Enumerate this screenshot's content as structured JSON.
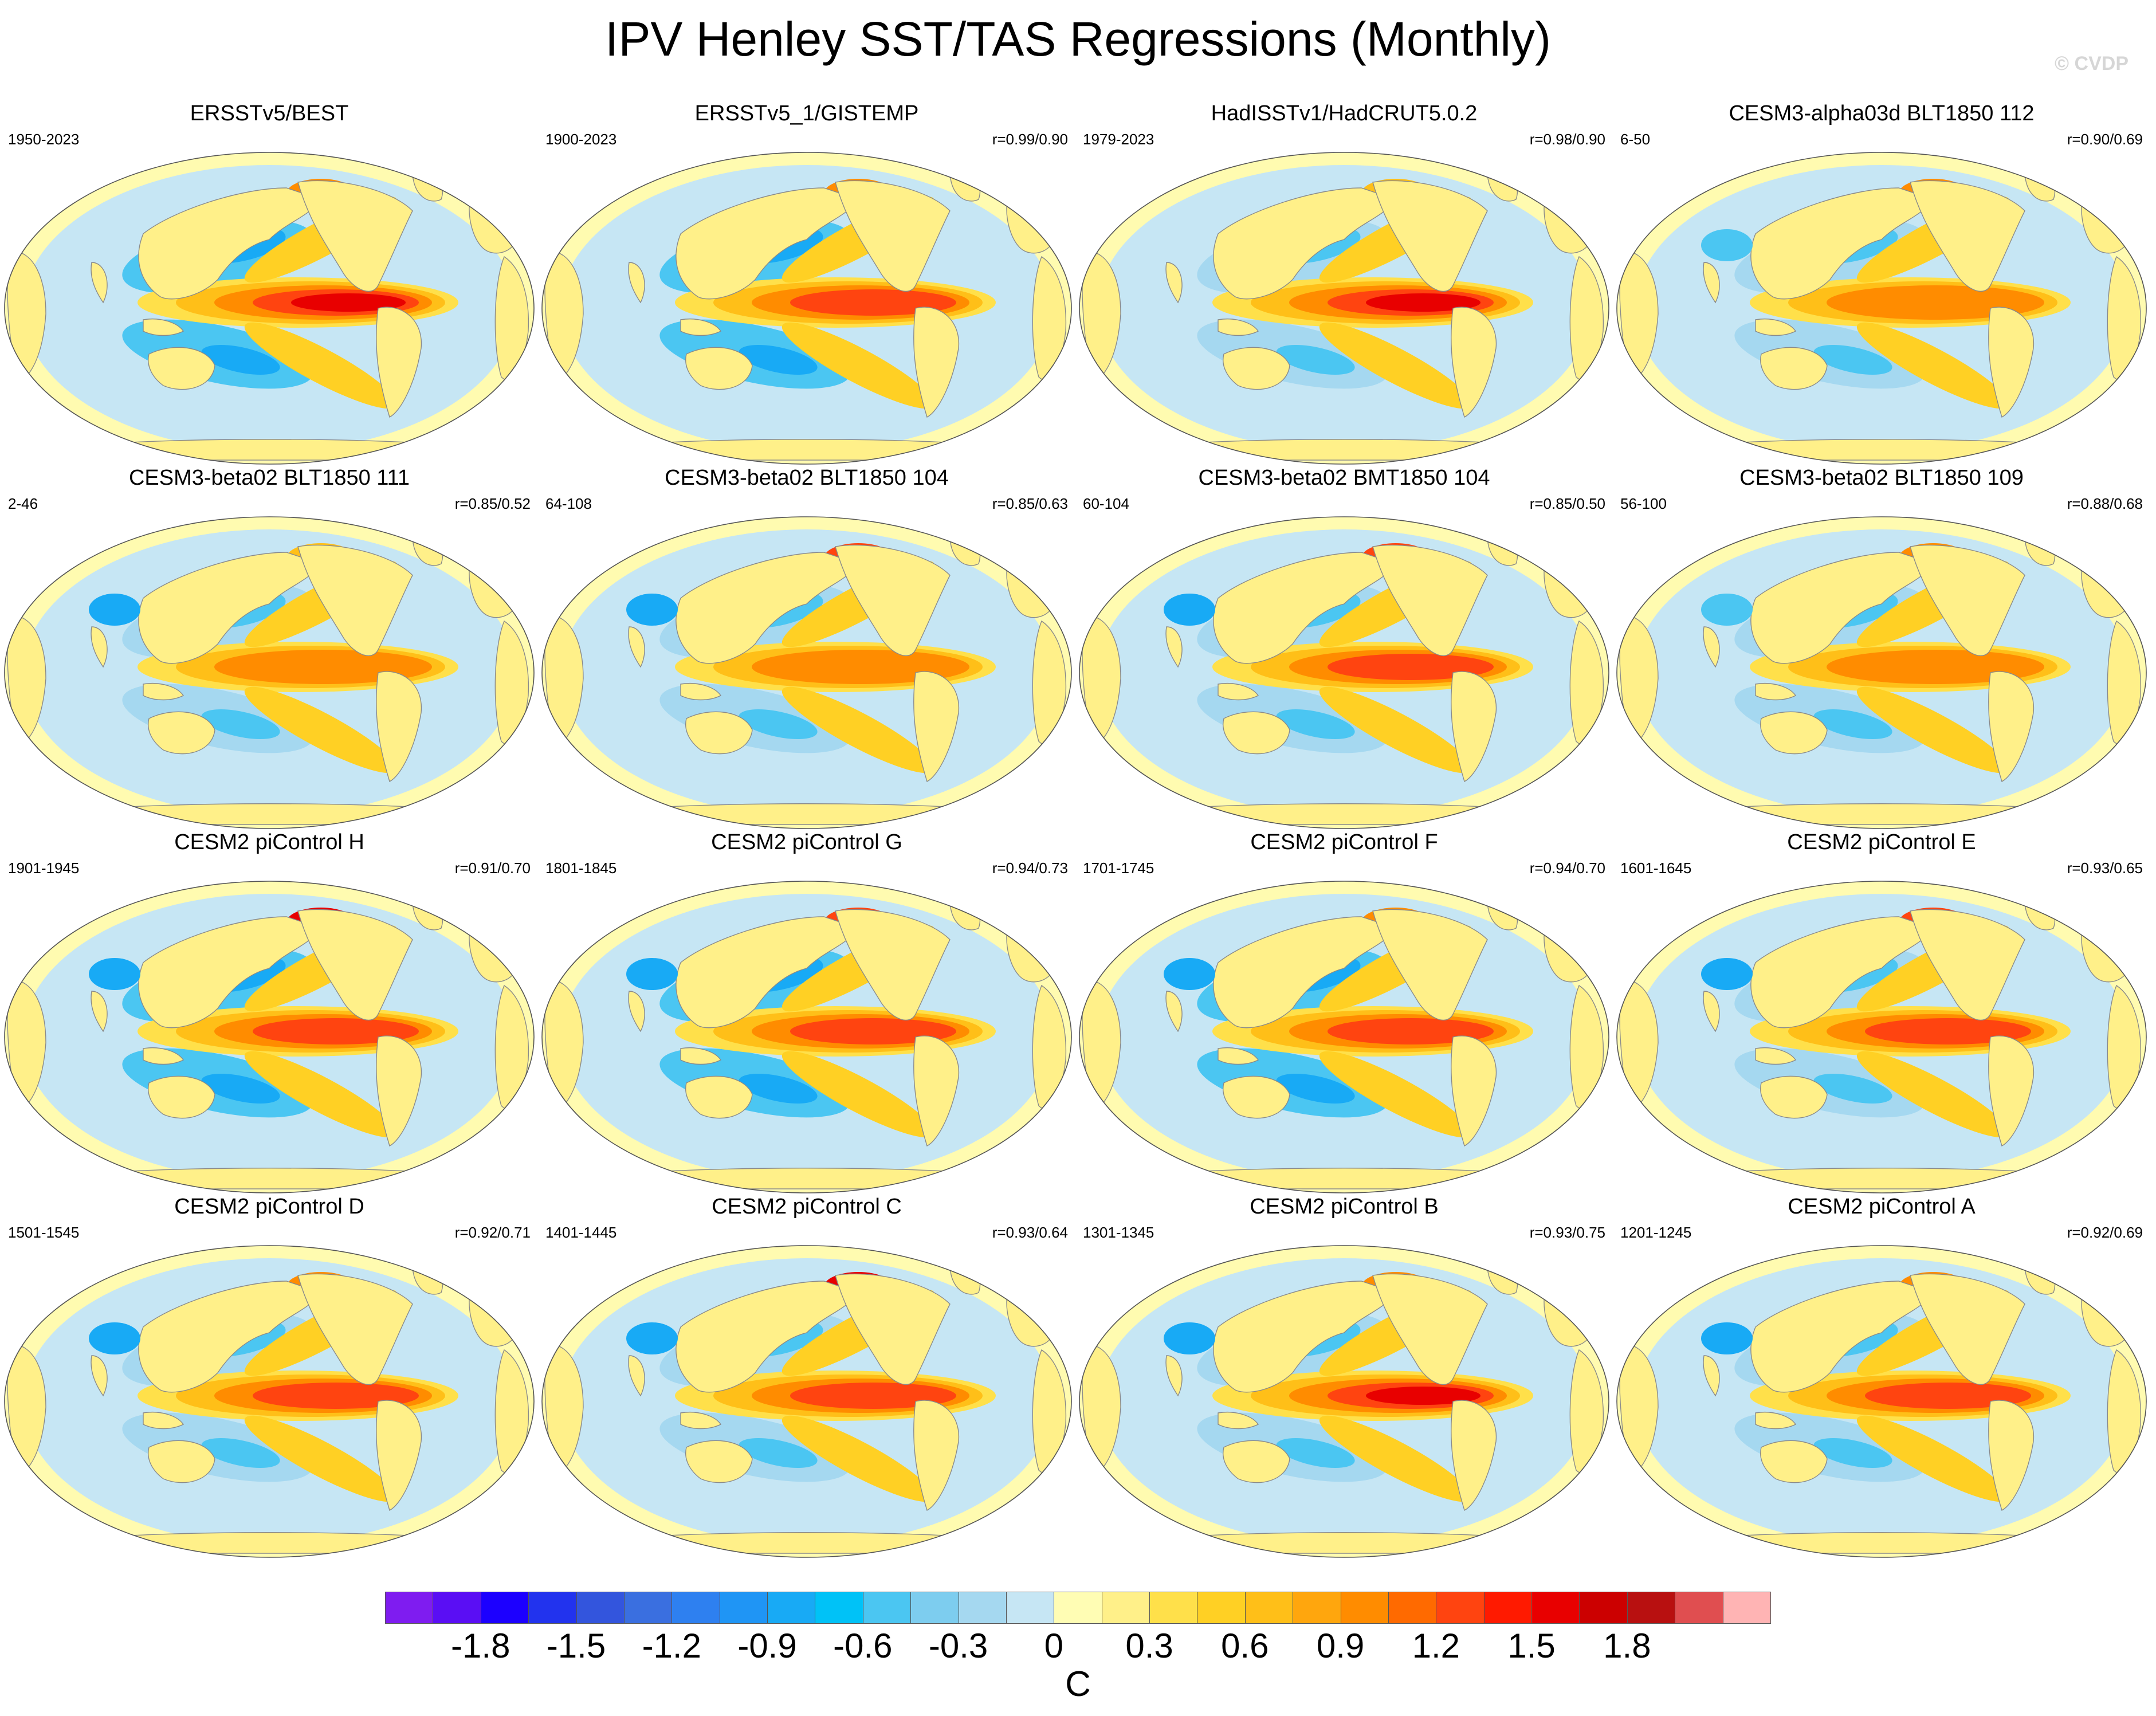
{
  "title": "IPV Henley SST/TAS Regressions (Monthly)",
  "copyright": "© CVDP",
  "colors": {
    "ocean_base": "#bfe3f2",
    "land_base": "#fffbb0",
    "coast": "#8a8a8a"
  },
  "panels": [
    {
      "title": "ERSSTv5/BEST",
      "years": "1950-2023",
      "corr": "",
      "nino_peak": 1.5,
      "na_warm": 0.9,
      "np_cold": -0.6,
      "asia_cold": 0.0
    },
    {
      "title": "ERSSTv5_1/GISTEMP",
      "years": "1900-2023",
      "corr": "r=0.99/0.90",
      "nino_peak": 1.2,
      "na_warm": 0.9,
      "np_cold": -0.6,
      "asia_cold": 0.0
    },
    {
      "title": "HadISSTv1/HadCRUT5.0.2",
      "years": "1979-2023",
      "corr": "r=0.98/0.90",
      "nino_peak": 1.5,
      "na_warm": 0.6,
      "np_cold": -0.3,
      "asia_cold": 0.0
    },
    {
      "title": "CESM3-alpha03d BLT1850 112",
      "years": "6-50",
      "corr": "r=0.90/0.69",
      "nino_peak": 0.9,
      "na_warm": 0.9,
      "np_cold": -0.3,
      "asia_cold": -0.6
    },
    {
      "title": "CESM3-beta02 BLT1850 111",
      "years": "2-46",
      "corr": "r=0.85/0.52",
      "nino_peak": 0.9,
      "na_warm": 0.6,
      "np_cold": -0.3,
      "asia_cold": -0.9
    },
    {
      "title": "CESM3-beta02 BLT1850 104",
      "years": "64-108",
      "corr": "r=0.85/0.63",
      "nino_peak": 0.9,
      "na_warm": 1.2,
      "np_cold": -0.3,
      "asia_cold": -0.9
    },
    {
      "title": "CESM3-beta02 BMT1850 104",
      "years": "60-104",
      "corr": "r=0.85/0.50",
      "nino_peak": 1.2,
      "na_warm": 1.2,
      "np_cold": -0.3,
      "asia_cold": -0.9
    },
    {
      "title": "CESM3-beta02 BLT1850 109",
      "years": "56-100",
      "corr": "r=0.88/0.68",
      "nino_peak": 0.9,
      "na_warm": 0.9,
      "np_cold": -0.3,
      "asia_cold": -0.6
    },
    {
      "title": "CESM2 piControl H",
      "years": "1901-1945",
      "corr": "r=0.91/0.70",
      "nino_peak": 1.2,
      "na_warm": 1.5,
      "np_cold": -0.6,
      "asia_cold": -0.9
    },
    {
      "title": "CESM2 piControl G",
      "years": "1801-1845",
      "corr": "r=0.94/0.73",
      "nino_peak": 1.2,
      "na_warm": 1.2,
      "np_cold": -0.6,
      "asia_cold": -0.9
    },
    {
      "title": "CESM2 piControl F",
      "years": "1701-1745",
      "corr": "r=0.94/0.70",
      "nino_peak": 1.2,
      "na_warm": 0.9,
      "np_cold": -0.6,
      "asia_cold": -0.9
    },
    {
      "title": "CESM2 piControl E",
      "years": "1601-1645",
      "corr": "r=0.93/0.65",
      "nino_peak": 1.2,
      "na_warm": 1.2,
      "np_cold": -0.3,
      "asia_cold": -0.9
    },
    {
      "title": "CESM2 piControl D",
      "years": "1501-1545",
      "corr": "r=0.92/0.71",
      "nino_peak": 1.2,
      "na_warm": 0.9,
      "np_cold": -0.3,
      "asia_cold": -0.9
    },
    {
      "title": "CESM2 piControl C",
      "years": "1401-1445",
      "corr": "r=0.93/0.64",
      "nino_peak": 1.2,
      "na_warm": 1.5,
      "np_cold": -0.3,
      "asia_cold": -0.9
    },
    {
      "title": "CESM2 piControl B",
      "years": "1301-1345",
      "corr": "r=0.93/0.75",
      "nino_peak": 1.5,
      "na_warm": 0.9,
      "np_cold": -0.3,
      "asia_cold": -0.9
    },
    {
      "title": "CESM2 piControl A",
      "years": "1201-1245",
      "corr": "r=0.92/0.69",
      "nino_peak": 1.2,
      "na_warm": 0.9,
      "np_cold": -0.3,
      "asia_cold": -0.9
    }
  ],
  "colorbar": {
    "units": "C",
    "colors": [
      "#7f1cf0",
      "#5a0ef4",
      "#1c00ff",
      "#2233ee",
      "#3355dd",
      "#3a6fe0",
      "#2e80f0",
      "#1f95f5",
      "#18aaf5",
      "#00c2f7",
      "#4bc6f2",
      "#7dcdef",
      "#a5d8f0",
      "#c6e6f4",
      "#fffdb4",
      "#fff089",
      "#ffe04a",
      "#ffd024",
      "#ffbf18",
      "#ffa60d",
      "#ff8c00",
      "#ff6a00",
      "#ff4410",
      "#ff1a00",
      "#e80000",
      "#cc0000",
      "#b81010",
      "#e04e50",
      "#ffb4b4"
    ],
    "labels": [
      "-1.8",
      "-1.5",
      "-1.2",
      "-0.9",
      "-0.6",
      "-0.3",
      "0",
      "0.3",
      "0.6",
      "0.9",
      "1.2",
      "1.5",
      "1.8"
    ],
    "min": -2.1,
    "step": 0.15
  }
}
